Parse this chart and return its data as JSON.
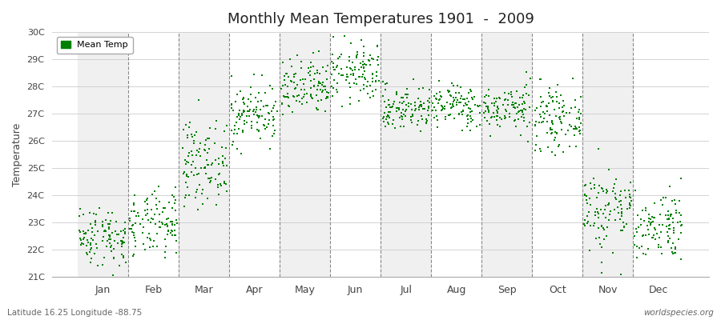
{
  "title": "Monthly Mean Temperatures 1901  -  2009",
  "ylabel": "Temperature",
  "subtitle_left": "Latitude 16.25 Longitude -88.75",
  "subtitle_right": "worldspecies.org",
  "legend_label": "Mean Temp",
  "marker_color": "#008000",
  "marker_size": 3,
  "bg_color": "#ffffff",
  "band_color_light": "#f0f0f0",
  "band_color_dark": "#e8e8e8",
  "ylim": [
    21,
    30
  ],
  "yticks": [
    21,
    22,
    23,
    24,
    25,
    26,
    27,
    28,
    29,
    30
  ],
  "ytick_labels": [
    "21C",
    "22C",
    "23C",
    "24C",
    "25C",
    "26C",
    "27C",
    "28C",
    "29C",
    "30C"
  ],
  "months": [
    "Jan",
    "Feb",
    "Mar",
    "Apr",
    "May",
    "Jun",
    "Jul",
    "Aug",
    "Sep",
    "Oct",
    "Nov",
    "Dec"
  ],
  "xlim": [
    0,
    13
  ],
  "num_years": 109,
  "seed": 42,
  "monthly_means": [
    22.5,
    22.9,
    25.2,
    27.0,
    27.9,
    28.5,
    27.2,
    27.3,
    27.2,
    26.8,
    23.5,
    22.9
  ],
  "monthly_stds": [
    0.55,
    0.6,
    0.75,
    0.55,
    0.55,
    0.55,
    0.42,
    0.4,
    0.42,
    0.55,
    0.8,
    0.65
  ]
}
